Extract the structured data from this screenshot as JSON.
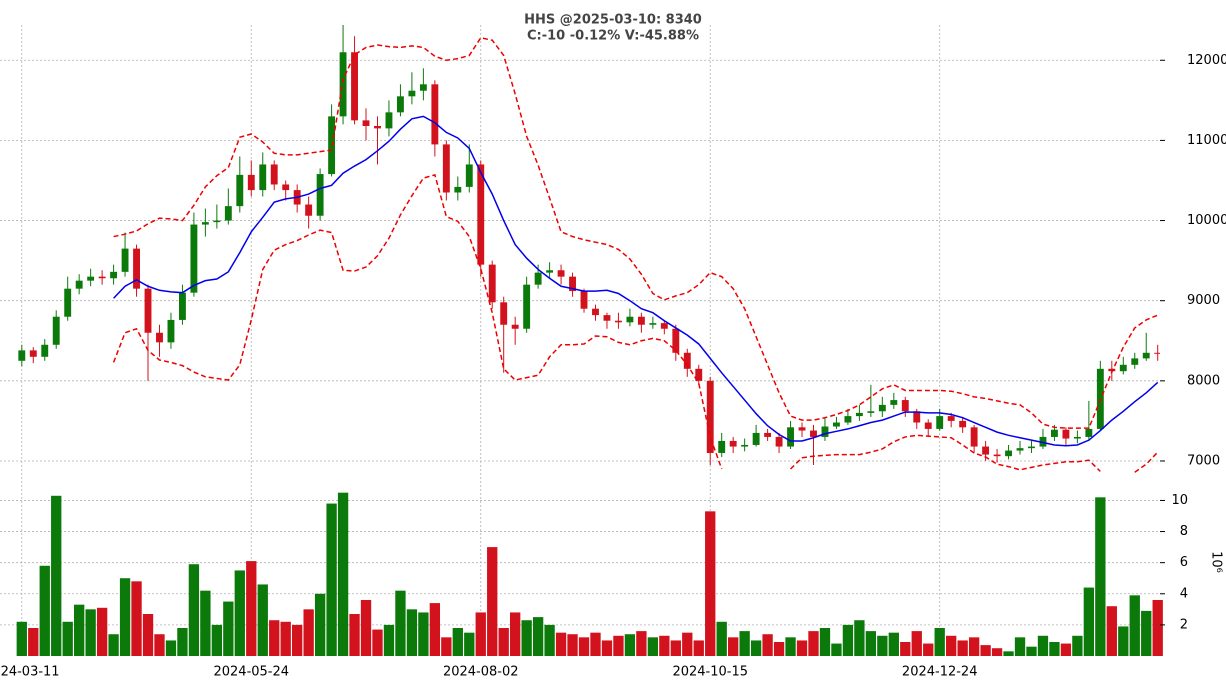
{
  "chart_data": {
    "type": "candlestick",
    "title": "HHS @2025-03-10: 8340",
    "subtitle": "C:-10 -0.12% V:-45.88%",
    "xlim": [
      -1.9,
      99.2
    ],
    "xticks": [
      {
        "value": 0,
        "label": "2024-03-11"
      },
      {
        "value": 20,
        "label": "2024-05-24"
      },
      {
        "value": 40,
        "label": "2024-08-02"
      },
      {
        "value": 60,
        "label": "2024-10-15"
      },
      {
        "value": 80,
        "label": "2024-12-24"
      }
    ],
    "ylim": [
      6850,
      12440
    ],
    "yticks": [
      7000,
      8000,
      9000,
      10000,
      11000,
      12000
    ],
    "grid": true,
    "up_color": "#0b7a0b",
    "down_color": "#d2121c",
    "open": [
      8250,
      8380,
      8300,
      8450,
      8800,
      9150,
      9250,
      9300,
      9280,
      9360,
      9650,
      9150,
      8600,
      8480,
      8760,
      9100,
      9950,
      9980,
      10000,
      10180,
      10570,
      10380,
      10700,
      10450,
      10380,
      10200,
      10060,
      10580,
      11300,
      12100,
      11250,
      11180,
      11150,
      11350,
      11550,
      11620,
      11700,
      10950,
      10350,
      10420,
      10700,
      9450,
      8980,
      8700,
      8650,
      9200,
      9350,
      9380,
      9300,
      9120,
      8900,
      8820,
      8750,
      8730,
      8800,
      8700,
      8720,
      8650,
      8350,
      8150,
      8000,
      7100,
      7250,
      7180,
      7200,
      7350,
      7300,
      7180,
      7420,
      7380,
      7300,
      7430,
      7480,
      7560,
      7600,
      7620,
      7700,
      7760,
      7620,
      7480,
      7400,
      7560,
      7500,
      7420,
      7180,
      7080,
      7060,
      7130,
      7160,
      7180,
      7300,
      7390,
      7280,
      7300,
      7400,
      8150,
      8120,
      8200,
      8280,
      8350
    ],
    "high": [
      8450,
      8420,
      8520,
      8880,
      9300,
      9330,
      9400,
      9380,
      9450,
      9850,
      9700,
      9200,
      8700,
      8850,
      9200,
      10100,
      10150,
      10200,
      10400,
      10800,
      10750,
      10850,
      10750,
      10500,
      10450,
      10300,
      10650,
      11450,
      12440,
      12300,
      11400,
      11300,
      11500,
      11700,
      11850,
      11900,
      11750,
      11000,
      10550,
      10950,
      10750,
      9500,
      9050,
      8800,
      9300,
      9450,
      9480,
      9450,
      9350,
      9150,
      8950,
      8850,
      8850,
      8900,
      8850,
      8800,
      8750,
      8700,
      8400,
      8200,
      8050,
      7350,
      7300,
      7280,
      7450,
      7400,
      7350,
      7500,
      7480,
      7450,
      7550,
      7550,
      7650,
      7700,
      7950,
      7800,
      7850,
      7800,
      7650,
      7520,
      7650,
      7600,
      7550,
      7450,
      7250,
      7150,
      7200,
      7250,
      7250,
      7400,
      7450,
      7420,
      7380,
      7750,
      8250,
      8250,
      8300,
      8350,
      8600,
      8450
    ],
    "low": [
      8180,
      8220,
      8250,
      8400,
      8750,
      9080,
      9180,
      9200,
      9200,
      9300,
      9050,
      8000,
      8300,
      8400,
      8700,
      9050,
      9800,
      9900,
      9950,
      10100,
      10300,
      10300,
      10380,
      10250,
      10100,
      9900,
      10000,
      10550,
      11200,
      11200,
      11000,
      10700,
      11050,
      11300,
      11450,
      11500,
      10800,
      10250,
      10250,
      10350,
      9300,
      8900,
      8100,
      8450,
      8600,
      9150,
      9280,
      9200,
      9050,
      8850,
      8750,
      8650,
      8650,
      8680,
      8600,
      8650,
      8580,
      8250,
      8050,
      7950,
      6950,
      7050,
      7100,
      7120,
      7180,
      7250,
      7100,
      7150,
      7300,
      6950,
      7250,
      7400,
      7450,
      7500,
      7550,
      7550,
      7650,
      7550,
      7400,
      7300,
      7380,
      7420,
      7350,
      7100,
      7000,
      6980,
      7020,
      7080,
      7100,
      7150,
      7250,
      7200,
      7220,
      7250,
      7380,
      8000,
      8080,
      8150,
      8250,
      8250
    ],
    "close": [
      8380,
      8300,
      8450,
      8800,
      9150,
      9250,
      9300,
      9280,
      9360,
      9650,
      9150,
      8600,
      8480,
      8760,
      9100,
      9950,
      9980,
      10000,
      10180,
      10570,
      10380,
      10700,
      10450,
      10380,
      10200,
      10060,
      10580,
      11300,
      12100,
      11250,
      11180,
      11150,
      11350,
      11550,
      11620,
      11700,
      10950,
      10350,
      10420,
      10700,
      9450,
      8980,
      8700,
      8650,
      9200,
      9350,
      9380,
      9300,
      9120,
      8900,
      8820,
      8750,
      8730,
      8800,
      8700,
      8720,
      8650,
      8350,
      8150,
      8000,
      7100,
      7250,
      7180,
      7200,
      7350,
      7300,
      7180,
      7420,
      7380,
      7300,
      7430,
      7480,
      7560,
      7600,
      7620,
      7700,
      7760,
      7620,
      7480,
      7400,
      7560,
      7500,
      7420,
      7180,
      7080,
      7060,
      7130,
      7160,
      7180,
      7300,
      7390,
      7280,
      7300,
      7400,
      8150,
      8120,
      8200,
      8280,
      8350,
      8340
    ],
    "lines": [
      {
        "color": "#0000ee",
        "style": "solid",
        "values": [
          null,
          null,
          null,
          null,
          null,
          null,
          null,
          null,
          9030,
          9180,
          9260,
          9180,
          9130,
          9110,
          9100,
          9190,
          9250,
          9270,
          9360,
          9600,
          9860,
          10040,
          10230,
          10270,
          10290,
          10330,
          10400,
          10440,
          10590,
          10680,
          10760,
          10870,
          10990,
          11140,
          11270,
          11300,
          11220,
          11100,
          11030,
          10900,
          10600,
          10330,
          10000,
          9700,
          9530,
          9390,
          9280,
          9180,
          9150,
          9120,
          9120,
          9130,
          9090,
          9000,
          8900,
          8850,
          8750,
          8660,
          8570,
          8460,
          8280,
          8100,
          7930,
          7760,
          7590,
          7440,
          7330,
          7250,
          7250,
          7290,
          7340,
          7370,
          7400,
          7440,
          7480,
          7510,
          7560,
          7610,
          7610,
          7600,
          7600,
          7580,
          7540,
          7480,
          7420,
          7360,
          7320,
          7290,
          7260,
          7230,
          7200,
          7190,
          7200,
          7260,
          7380,
          7510,
          7620,
          7740,
          7850,
          7980
        ]
      },
      {
        "color": "#ee0000",
        "style": "dashed",
        "values": [
          null,
          null,
          null,
          null,
          null,
          null,
          null,
          null,
          9800,
          9830,
          9870,
          9960,
          10030,
          10020,
          10000,
          10190,
          10420,
          10560,
          10660,
          11040,
          11080,
          10980,
          10840,
          10820,
          10820,
          10840,
          10860,
          10880,
          11760,
          12070,
          12160,
          12190,
          12170,
          12160,
          12180,
          12160,
          12050,
          12000,
          12020,
          12060,
          12280,
          12250,
          12060,
          11580,
          11050,
          10690,
          10280,
          9860,
          9800,
          9760,
          9730,
          9700,
          9640,
          9520,
          9330,
          9090,
          9010,
          9060,
          9100,
          9200,
          9350,
          9300,
          9150,
          8900,
          8550,
          8200,
          7850,
          7560,
          7510,
          7510,
          7540,
          7580,
          7630,
          7700,
          7800,
          7900,
          7950,
          7880,
          7880,
          7880,
          7880,
          7870,
          7840,
          7800,
          7780,
          7750,
          7720,
          7700,
          7600,
          7460,
          7420,
          7410,
          7410,
          7410,
          7760,
          8110,
          8420,
          8660,
          8760,
          8820
        ]
      },
      {
        "color": "#ee0000",
        "style": "dashed",
        "values": [
          null,
          null,
          null,
          null,
          null,
          null,
          null,
          null,
          8230,
          8600,
          8650,
          8380,
          8260,
          8230,
          8190,
          8110,
          8050,
          8030,
          8010,
          8200,
          8760,
          9390,
          9630,
          9700,
          9750,
          9820,
          9880,
          9850,
          9380,
          9370,
          9420,
          9560,
          9780,
          10070,
          10310,
          10530,
          10570,
          10050,
          9990,
          9800,
          9400,
          8850,
          8150,
          8010,
          8040,
          8070,
          8300,
          8450,
          8450,
          8460,
          8560,
          8550,
          8480,
          8450,
          8500,
          8530,
          8500,
          8380,
          8200,
          7970,
          7300,
          6900,
          null,
          null,
          null,
          null,
          null,
          6900,
          7040,
          7060,
          7070,
          7080,
          7080,
          7080,
          7110,
          7150,
          7240,
          7300,
          7320,
          7310,
          7300,
          7290,
          7200,
          7100,
          7050,
          6960,
          6930,
          6890,
          6920,
          6950,
          6970,
          6990,
          6990,
          7010,
          6870,
          null,
          null,
          6860,
          6960,
          7110
        ]
      }
    ],
    "volume": {
      "label": "10⁶",
      "ylim": [
        0,
        10.8
      ],
      "yticks": [
        2,
        4,
        6,
        8,
        10
      ],
      "values": [
        2.2,
        1.8,
        5.8,
        10.3,
        2.2,
        3.3,
        3.0,
        3.1,
        1.4,
        5.0,
        4.8,
        2.7,
        1.4,
        1.0,
        1.8,
        5.9,
        4.2,
        2.0,
        3.5,
        5.5,
        6.1,
        4.6,
        2.3,
        2.2,
        2.0,
        3.0,
        4.0,
        9.8,
        10.5,
        2.7,
        3.6,
        1.7,
        2.0,
        4.2,
        3.0,
        2.8,
        3.4,
        1.2,
        1.8,
        1.5,
        2.8,
        7.0,
        1.8,
        2.8,
        2.3,
        2.5,
        2.0,
        1.5,
        1.4,
        1.2,
        1.5,
        1.0,
        1.3,
        1.4,
        1.6,
        1.2,
        1.3,
        1.0,
        1.5,
        1.0,
        9.3,
        2.2,
        1.2,
        1.6,
        1.0,
        1.4,
        0.9,
        1.2,
        1.0,
        1.6,
        1.8,
        0.8,
        2.0,
        2.3,
        1.6,
        1.3,
        1.5,
        0.9,
        1.6,
        0.8,
        1.8,
        1.3,
        1.0,
        1.2,
        0.7,
        0.5,
        0.3,
        1.2,
        0.6,
        1.3,
        0.9,
        0.8,
        1.3,
        4.4,
        10.2,
        3.2,
        1.9,
        3.9,
        2.9,
        3.6
      ]
    }
  }
}
